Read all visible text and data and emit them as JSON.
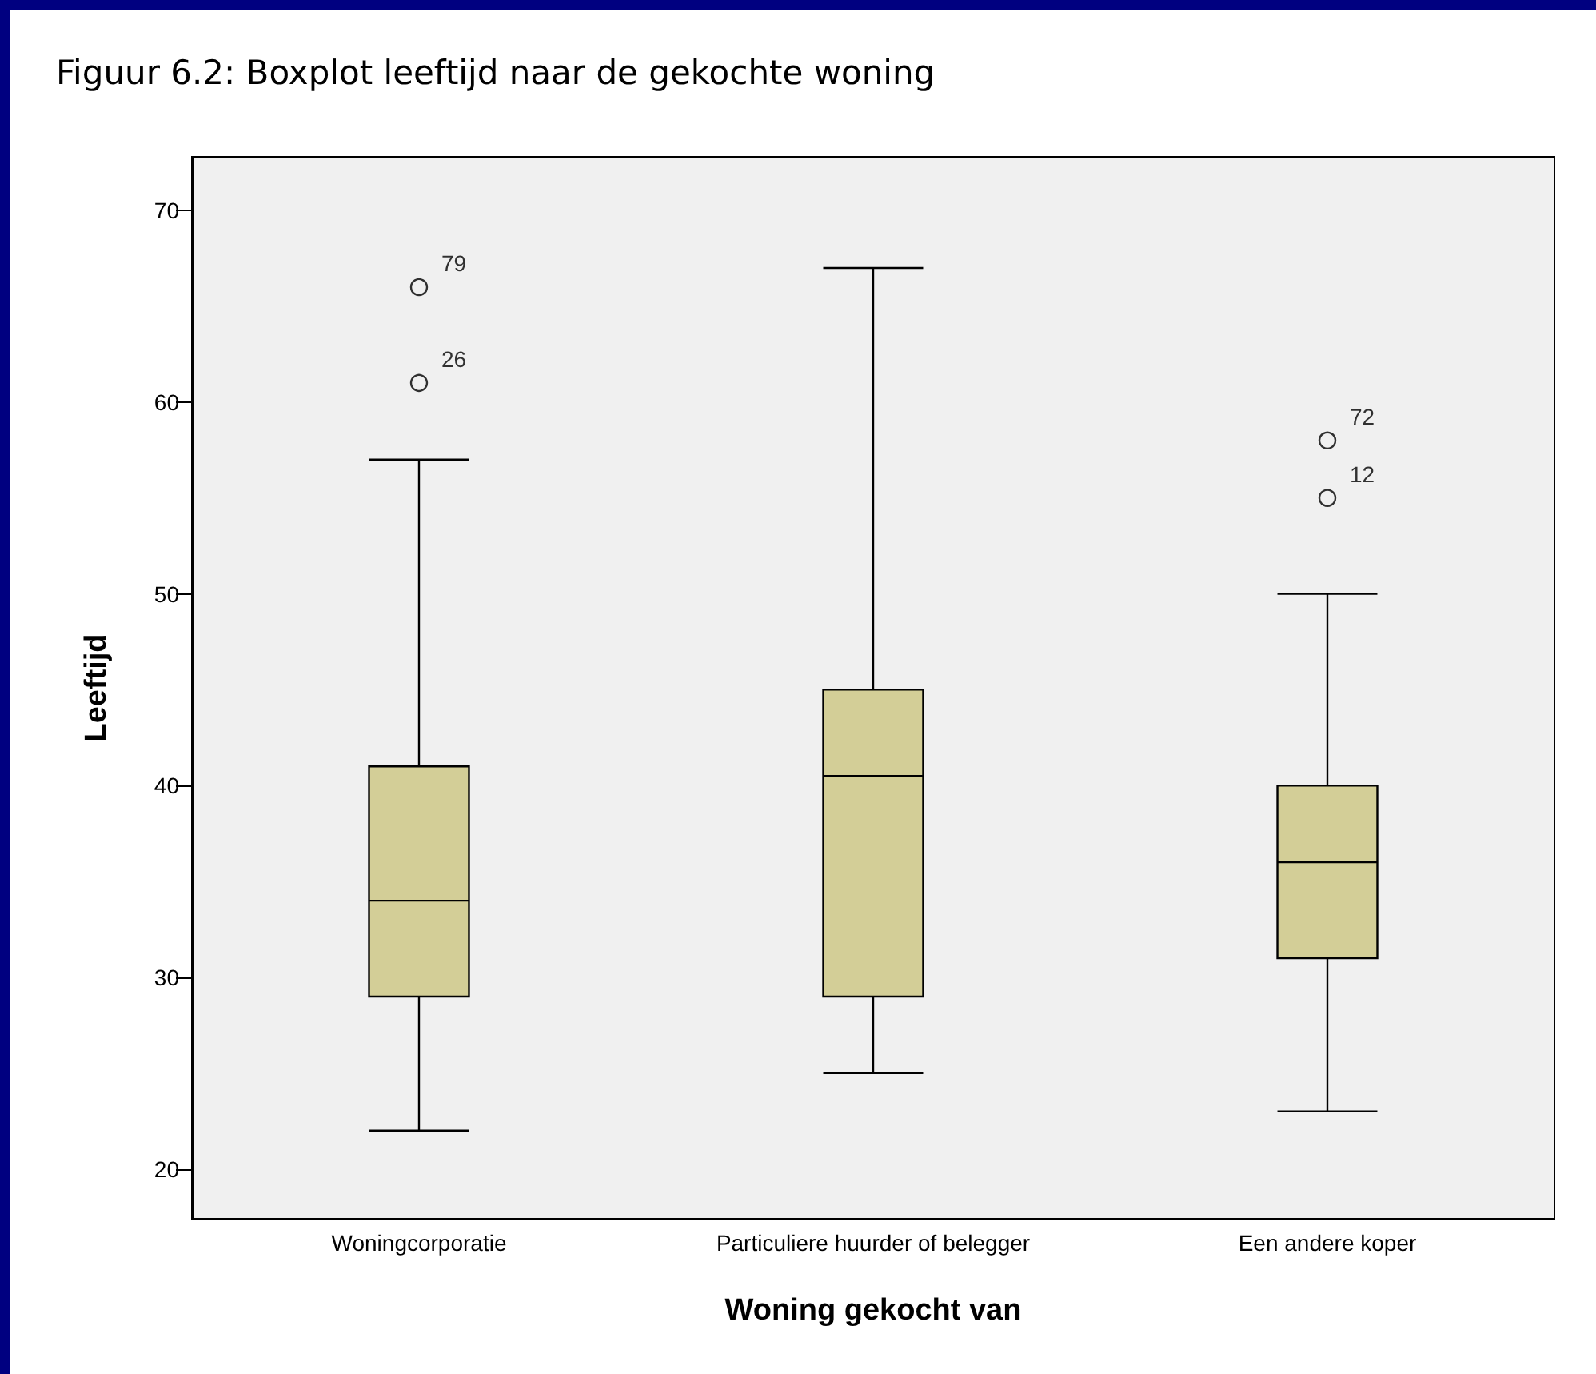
{
  "chart_data": {
    "type": "box",
    "title": "Figuur 6.2: Boxplot leeftijd naar de gekochte woning",
    "xlabel": "Woning gekocht van",
    "ylabel": "Leeftijd",
    "categories": [
      "Woningcorporatie",
      "Particuliere huurder of belegger",
      "Een andere koper"
    ],
    "boxes": [
      {
        "low": 22,
        "q1": 29,
        "median": 34,
        "q3": 41,
        "high": 57,
        "outliers": [
          66,
          61
        ]
      },
      {
        "low": 25,
        "q1": 29,
        "median": 40.5,
        "q3": 45,
        "high": 67
      },
      {
        "low": 23,
        "q1": 31,
        "median": 36,
        "q3": 40,
        "high": 50,
        "outliers": [
          58,
          55
        ]
      }
    ],
    "color": "#d3ce97",
    "ylim": [
      17.4,
      72.8
    ],
    "yticks": [
      20,
      30,
      40,
      50,
      60,
      70
    ],
    "annotations": [
      "79",
      "26",
      "72",
      "12"
    ]
  }
}
